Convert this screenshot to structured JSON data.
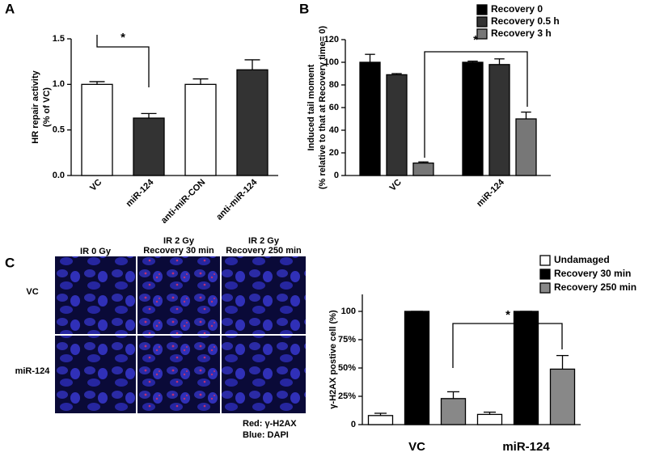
{
  "panels": [
    "A",
    "B",
    "C"
  ],
  "micrographs": {
    "columns": [
      [
        "IR 0 Gy"
      ],
      [
        "IR 2 Gy",
        "Recovery 30 min"
      ],
      [
        "IR 2 Gy",
        "Recovery 250 min"
      ]
    ],
    "rows": [
      "VC",
      "miR-124"
    ],
    "legend": [
      "Red: γ-H2AX",
      "Blue: DAPI"
    ]
  },
  "chart_data": [
    {
      "type": "bar",
      "y_label": [
        "HR repair activity",
        "(% of VC)"
      ],
      "categories": [
        "VC",
        "miR-124",
        "anti-miR-CON",
        "anti-miR-124"
      ],
      "values": [
        1.0,
        0.63,
        1.0,
        1.16
      ],
      "errors": [
        0.03,
        0.05,
        0.06,
        0.11
      ],
      "colors": [
        "#ffffff",
        "#333333",
        "#ffffff",
        "#333333"
      ],
      "ylim": [
        0,
        1.5
      ],
      "yticks": [
        {
          "value": 0,
          "label": "0.0"
        },
        0.5,
        {
          "value": 1,
          "label": "1.0"
        },
        1.5
      ],
      "annotation": "*"
    },
    {
      "type": "bar",
      "y_label": [
        "Induced tail moment",
        "(% relative to that at Recovery time= 0)"
      ],
      "categories": [
        "VC",
        "miR-124"
      ],
      "series": [
        {
          "name": "Recovery 0",
          "color": "#000000",
          "values": [
            100,
            100
          ],
          "errors": [
            7,
            1
          ]
        },
        {
          "name": "Recovery 0.5 h",
          "color": "#333333",
          "values": [
            89,
            98
          ],
          "errors": [
            1,
            5
          ]
        },
        {
          "name": "Recovery 3 h",
          "color": "#777777",
          "values": [
            11,
            50
          ],
          "errors": [
            1,
            6
          ]
        }
      ],
      "ylim": [
        0,
        120
      ],
      "yticks": [
        0,
        20,
        40,
        60,
        80,
        100,
        120
      ],
      "legend": "top-right",
      "annotation": "*"
    },
    {
      "type": "bar",
      "y_label": [
        "γ-H2AX postive cell (%)"
      ],
      "categories": [
        "VC",
        "miR-124"
      ],
      "series": [
        {
          "name": "Undamaged",
          "color": "#ffffff",
          "values": [
            8,
            9
          ],
          "errors": [
            2,
            2
          ]
        },
        {
          "name": "Recovery 30 min",
          "color": "#000000",
          "values": [
            100,
            100
          ],
          "errors": [
            0,
            0
          ]
        },
        {
          "name": "Recovery 250 min",
          "color": "#888888",
          "values": [
            23,
            49
          ],
          "errors": [
            6,
            12
          ]
        }
      ],
      "ylim": [
        0,
        115
      ],
      "yticks": [
        0,
        {
          "value": 25,
          "label": "25%"
        },
        {
          "value": 50,
          "label": "50%"
        },
        {
          "value": 75,
          "label": "75%"
        },
        100
      ],
      "legend": "top-right",
      "annotation": "*"
    }
  ]
}
